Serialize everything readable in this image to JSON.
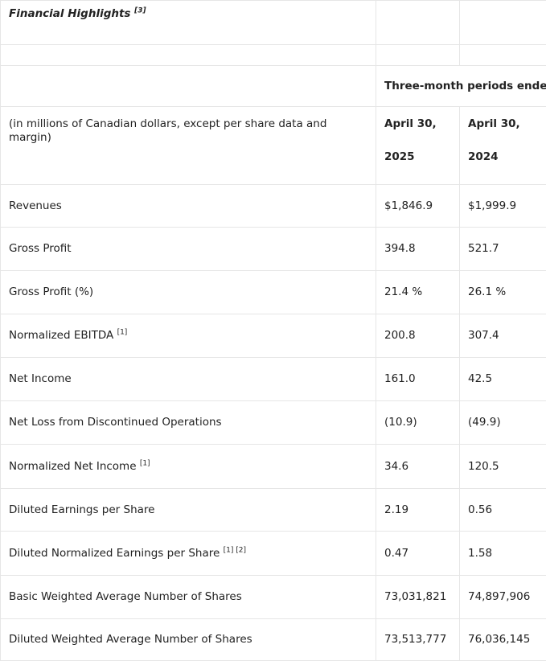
{
  "title": "Financial Highlights",
  "title_note": "[3]",
  "period_header": "Three-month periods ended",
  "units_label": "(in millions of Canadian dollars, except per share data and margin)",
  "col1": {
    "date": "April 30,",
    "year": "2025"
  },
  "col2": {
    "date": "April 30,",
    "year": "2024"
  },
  "rows": [
    {
      "label": "Revenues",
      "note": "",
      "v1": "$1,846.9",
      "v2": "$1,999.9"
    },
    {
      "label": "Gross Profit",
      "note": "",
      "v1": "394.8",
      "v2": "521.7"
    },
    {
      "label": "Gross Profit (%)",
      "note": "",
      "v1": "21.4 %",
      "v2": "26.1 %"
    },
    {
      "label": "Normalized EBITDA",
      "note": "[1]",
      "v1": "200.8",
      "v2": "307.4"
    },
    {
      "label": "Net Income",
      "note": "",
      "v1": "161.0",
      "v2": "42.5"
    },
    {
      "label": "Net Loss from Discontinued Operations",
      "note": "",
      "v1": "(10.9)",
      "v2": "(49.9)"
    },
    {
      "label": "Normalized Net Income",
      "note": "[1]",
      "v1": "34.6",
      "v2": "120.5"
    },
    {
      "label": "Diluted Earnings per Share",
      "note": "",
      "v1": "2.19",
      "v2": "0.56"
    },
    {
      "label": "Diluted Normalized Earnings per Share",
      "note": "[1] [2]",
      "v1": "0.47",
      "v2": "1.58"
    },
    {
      "label": "Basic Weighted Average Number of Shares",
      "note": "",
      "v1": "73,031,821",
      "v2": "74,897,906"
    },
    {
      "label": "Diluted Weighted Average Number of Shares",
      "note": "",
      "v1": "73,513,777",
      "v2": "76,036,145"
    }
  ]
}
